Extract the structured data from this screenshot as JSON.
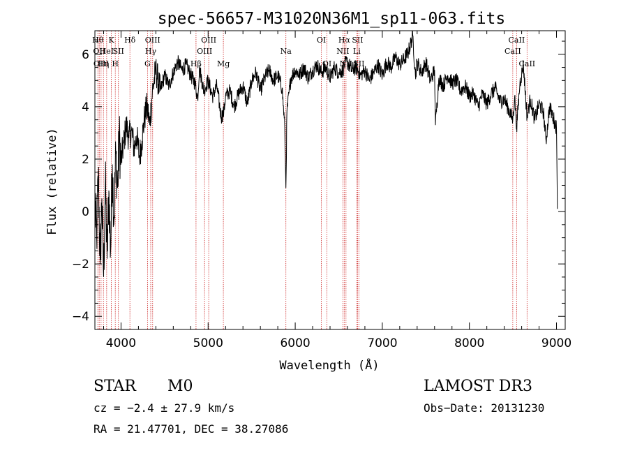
{
  "chart_data": {
    "type": "line",
    "title": "spec-56657-M31020N36M1_sp11-063.fits",
    "xlabel": "Wavelength (Å)",
    "ylabel": "Flux (relative)",
    "xlim": [
      3700,
      9100
    ],
    "ylim": [
      -4.5,
      6.9
    ],
    "xticks": [
      4000,
      5000,
      6000,
      7000,
      8000,
      9000
    ],
    "xtick_labels": [
      "4000",
      "5000",
      "6000",
      "7000",
      "8000",
      "9000"
    ],
    "yticks": [
      -4,
      -2,
      0,
      2,
      4,
      6
    ],
    "ytick_labels": [
      "−4",
      "−2",
      "0",
      "2",
      "4",
      "6"
    ],
    "series": [
      {
        "name": "spectrum",
        "x": [
          3700,
          3720,
          3740,
          3760,
          3780,
          3800,
          3820,
          3840,
          3860,
          3880,
          3900,
          3920,
          3940,
          3960,
          3980,
          4000,
          4030,
          4060,
          4090,
          4120,
          4150,
          4180,
          4210,
          4240,
          4270,
          4300,
          4330,
          4360,
          4400,
          4450,
          4500,
          4550,
          4600,
          4650,
          4700,
          4750,
          4800,
          4850,
          4880,
          4900,
          4950,
          5000,
          5050,
          5100,
          5150,
          5180,
          5200,
          5250,
          5300,
          5350,
          5400,
          5450,
          5500,
          5550,
          5600,
          5650,
          5700,
          5750,
          5800,
          5850,
          5880,
          5893,
          5905,
          5950,
          6000,
          6050,
          6100,
          6150,
          6200,
          6250,
          6300,
          6350,
          6400,
          6450,
          6500,
          6550,
          6563,
          6600,
          6650,
          6700,
          6750,
          6800,
          6850,
          6900,
          6950,
          7000,
          7050,
          7100,
          7150,
          7200,
          7250,
          7300,
          7350,
          7380,
          7400,
          7450,
          7500,
          7550,
          7600,
          7610,
          7650,
          7700,
          7750,
          7800,
          7850,
          7900,
          7950,
          8000,
          8050,
          8100,
          8150,
          8200,
          8250,
          8300,
          8350,
          8400,
          8450,
          8498,
          8520,
          8542,
          8580,
          8620,
          8662,
          8700,
          8750,
          8800,
          8850,
          8880,
          8920,
          8960,
          9000,
          9010
        ],
        "values": [
          0.2,
          -1.0,
          1.5,
          -2.0,
          0.5,
          -2.5,
          1.2,
          -1.8,
          0.8,
          -1.5,
          1.8,
          -0.3,
          2.2,
          0.9,
          2.8,
          1.9,
          2.6,
          3.3,
          2.8,
          3.1,
          2.4,
          2.9,
          2.1,
          2.7,
          3.6,
          4.0,
          3.3,
          4.6,
          5.4,
          4.6,
          5.2,
          4.8,
          5.3,
          5.7,
          5.4,
          5.6,
          5.2,
          4.9,
          4.3,
          5.5,
          4.6,
          5.0,
          4.4,
          4.8,
          3.6,
          3.8,
          4.4,
          4.6,
          4.0,
          4.5,
          4.8,
          4.1,
          5.0,
          5.3,
          4.6,
          5.1,
          5.4,
          5.0,
          5.2,
          4.7,
          3.2,
          0.9,
          3.8,
          5.1,
          5.4,
          5.2,
          5.5,
          5.1,
          5.4,
          5.6,
          5.3,
          5.5,
          5.1,
          5.5,
          5.3,
          5.4,
          5.6,
          5.7,
          5.4,
          5.5,
          5.2,
          5.4,
          5.0,
          5.3,
          5.6,
          5.2,
          5.7,
          5.5,
          5.9,
          5.6,
          5.8,
          6.1,
          6.7,
          5.2,
          5.7,
          5.3,
          5.7,
          5.0,
          5.4,
          3.3,
          5.1,
          4.8,
          5.2,
          4.9,
          5.0,
          4.6,
          4.8,
          4.4,
          4.5,
          4.0,
          4.5,
          4.1,
          4.5,
          4.7,
          4.2,
          4.3,
          3.9,
          3.5,
          4.4,
          3.2,
          4.9,
          5.6,
          3.6,
          4.3,
          3.5,
          4.1,
          3.8,
          2.7,
          4.0,
          3.6,
          3.2,
          0.1
        ]
      }
    ],
    "line_markers": [
      {
        "wavelength": 3734,
        "label": "Hθ",
        "row": 1
      },
      {
        "wavelength": 3750,
        "label": "OII",
        "row": 2
      },
      {
        "wavelength": 3771,
        "label": "OIII",
        "row": 3
      },
      {
        "wavelength": 3798,
        "label": "Hη",
        "row": 3
      },
      {
        "wavelength": 3835,
        "label": "HeI",
        "row": 2
      },
      {
        "wavelength": 3889,
        "label": "K",
        "row": 1
      },
      {
        "wavelength": 3934,
        "label": "H",
        "row": 3
      },
      {
        "wavelength": 3970,
        "label": "SII",
        "row": 2
      },
      {
        "wavelength": 4102,
        "label": "Hδ",
        "row": 1
      },
      {
        "wavelength": 4304,
        "label": "G",
        "row": 3
      },
      {
        "wavelength": 4341,
        "label": "Hγ",
        "row": 2
      },
      {
        "wavelength": 4363,
        "label": "OIII",
        "row": 1
      },
      {
        "wavelength": 4861,
        "label": "Hβ",
        "row": 3
      },
      {
        "wavelength": 4959,
        "label": "OIII",
        "row": 2
      },
      {
        "wavelength": 5007,
        "label": "OIII",
        "row": 1
      },
      {
        "wavelength": 5175,
        "label": "Mg",
        "row": 3
      },
      {
        "wavelength": 5893,
        "label": "Na",
        "row": 2
      },
      {
        "wavelength": 6300,
        "label": "OI",
        "row": 1
      },
      {
        "wavelength": 6364,
        "label": "OI",
        "row": 3
      },
      {
        "wavelength": 6548,
        "label": "NII",
        "row": 2
      },
      {
        "wavelength": 6563,
        "label": "Hα",
        "row": 1
      },
      {
        "wavelength": 6583,
        "label": "NII",
        "row": 3
      },
      {
        "wavelength": 6707,
        "label": "Li",
        "row": 2
      },
      {
        "wavelength": 6716,
        "label": "SII",
        "row": 1
      },
      {
        "wavelength": 6731,
        "label": "SII",
        "row": 3
      },
      {
        "wavelength": 8498,
        "label": "CaII",
        "row": 2
      },
      {
        "wavelength": 8542,
        "label": "CaII",
        "row": 1
      },
      {
        "wavelength": 8662,
        "label": "CaII",
        "row": 3
      }
    ],
    "grid": false,
    "legend": "none"
  },
  "info": {
    "class_label": "STAR",
    "subclass_label": "M0",
    "survey": "LAMOST DR3",
    "redshift": "cz = −2.4 ± 27.9 km/s",
    "obs_date": "Obs−Date: 20131230",
    "coords": "RA =  21.47701, DEC =  38.27086"
  },
  "colors": {
    "line": "#000000",
    "marker": "#cc2222",
    "axis": "#000000"
  }
}
